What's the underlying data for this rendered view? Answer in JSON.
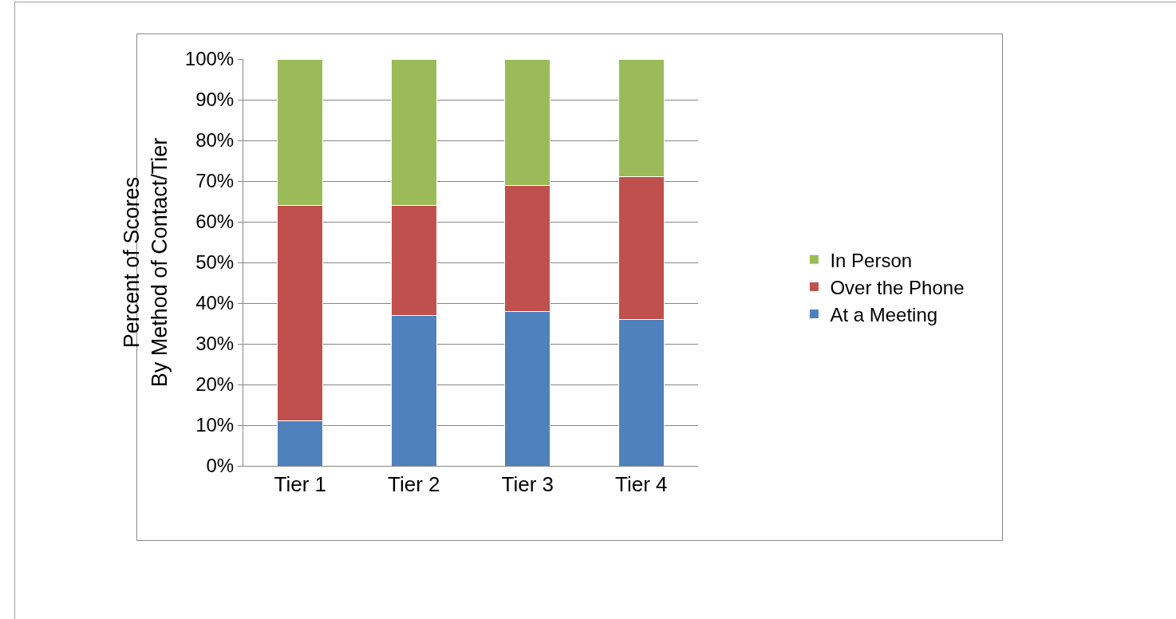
{
  "chart_data": {
    "type": "bar",
    "stacked": true,
    "ylabel": "Percent of Scores\nBy Method of Contact/Tier",
    "categories": [
      "Tier 1",
      "Tier 2",
      "Tier 3",
      "Tier 4"
    ],
    "series": [
      {
        "name": "At a Meeting",
        "color": "#4f81bd",
        "values": [
          11,
          37,
          38,
          36
        ]
      },
      {
        "name": "Over the Phone",
        "color": "#c0504d",
        "values": [
          53,
          27,
          31,
          35
        ]
      },
      {
        "name": "In Person",
        "color": "#9bbb59",
        "values": [
          36,
          36,
          31,
          29
        ]
      }
    ],
    "ylim": [
      0,
      100
    ],
    "yticks": [
      {
        "value": 0,
        "label": "0%"
      },
      {
        "value": 10,
        "label": "10%"
      },
      {
        "value": 20,
        "label": "20%"
      },
      {
        "value": 30,
        "label": "30%"
      },
      {
        "value": 40,
        "label": "40%"
      },
      {
        "value": 50,
        "label": "50%"
      },
      {
        "value": 60,
        "label": "60%"
      },
      {
        "value": 70,
        "label": "70%"
      },
      {
        "value": 80,
        "label": "80%"
      },
      {
        "value": 90,
        "label": "90%"
      },
      {
        "value": 100,
        "label": "100%"
      }
    ],
    "grid": "y",
    "legend": "right"
  }
}
